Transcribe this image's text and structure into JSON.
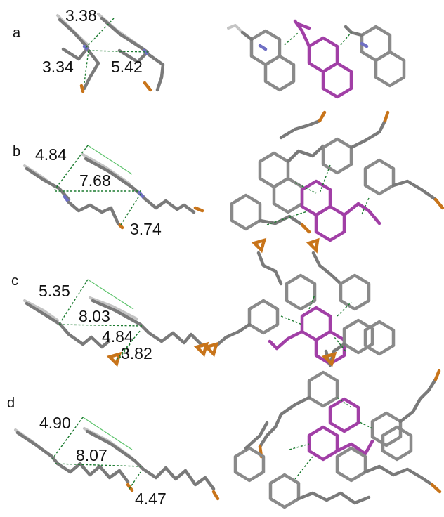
{
  "panels": [
    {
      "label": "a",
      "distances": [
        "3.38",
        "3.34",
        "5.42"
      ]
    },
    {
      "label": "b",
      "distances": [
        "4.84",
        "7.68",
        "3.74"
      ]
    },
    {
      "label": "c",
      "distances": [
        "5.35",
        "8.03",
        "4.84",
        "3.82"
      ]
    },
    {
      "label": "d",
      "distances": [
        "4.90",
        "8.07",
        "4.47"
      ]
    }
  ],
  "colors": {
    "carbon": "#7a7a7a",
    "hydrogen": "#c4c4c4",
    "nitrogen": "#6f6fc4",
    "bromine": "#c8741a",
    "highlight_molecule": "#a13fa6",
    "contact_line": "#1a7a2e"
  }
}
